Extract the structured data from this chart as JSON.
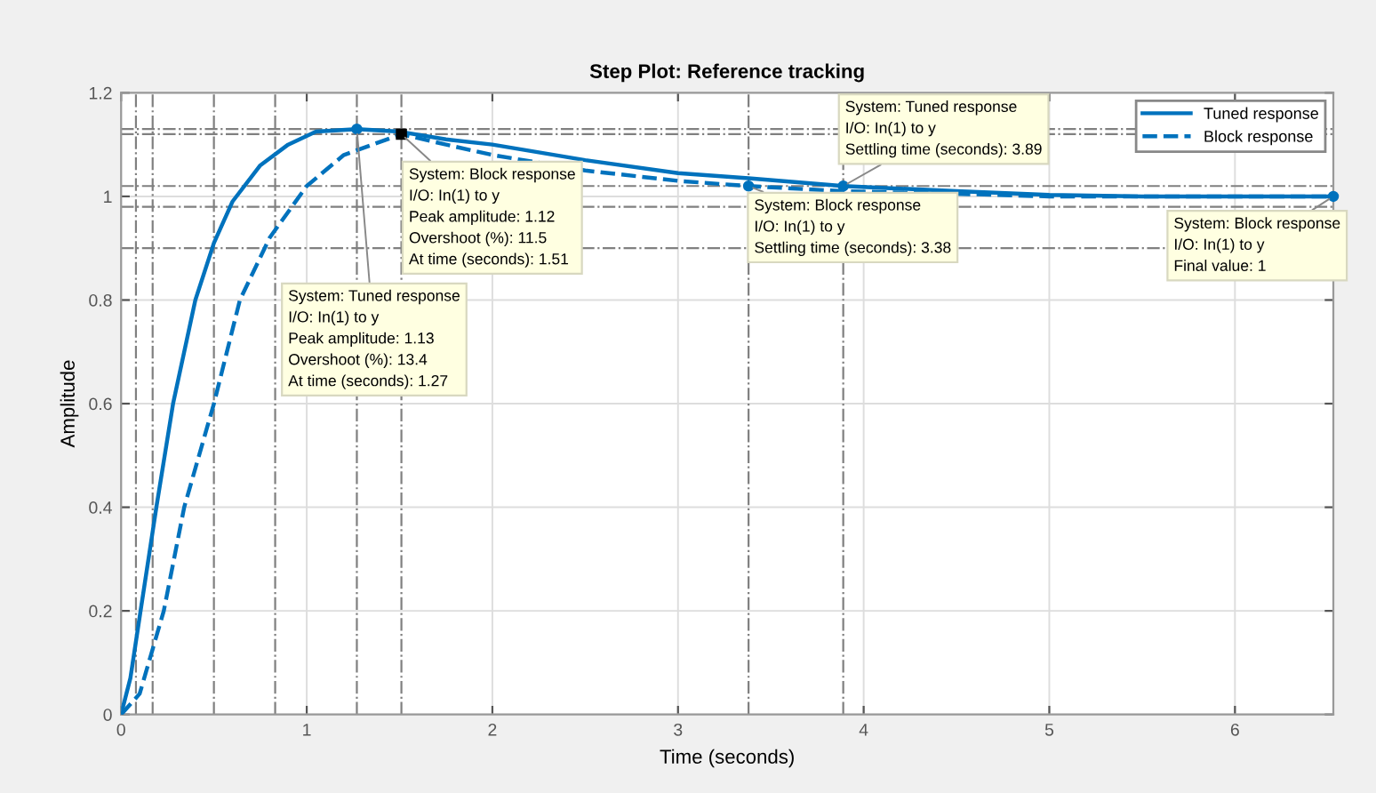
{
  "chart_data": {
    "type": "line",
    "title": "Step Plot: Reference tracking",
    "xlabel": "Time (seconds)",
    "ylabel": "Amplitude",
    "series": [
      {
        "name": "Tuned response",
        "color": "#0072bd",
        "line_style": "solid",
        "x": [
          0,
          0.05,
          0.105,
          0.19,
          0.28,
          0.4,
          0.5,
          0.6,
          0.75,
          0.9,
          1.05,
          1.27,
          1.5,
          1.75,
          2,
          2.5,
          3,
          3.38,
          3.89,
          4.5,
          5,
          5.5,
          6,
          6.53
        ],
        "values": [
          0,
          0.07,
          0.2,
          0.4,
          0.6,
          0.8,
          0.91,
          0.99,
          1.06,
          1.1,
          1.125,
          1.13,
          1.125,
          1.11,
          1.1,
          1.07,
          1.045,
          1.035,
          1.02,
          1.01,
          1.003,
          1.0,
          1.0,
          1.0
        ]
      },
      {
        "name": "Block response",
        "color": "#0072bd",
        "line_style": "dashed",
        "x": [
          0,
          0.1,
          0.23,
          0.34,
          0.5,
          0.64,
          0.8,
          1.0,
          1.2,
          1.51,
          1.75,
          2,
          2.5,
          3,
          3.38,
          3.89,
          4.5,
          5,
          5.5,
          6,
          6.53
        ],
        "values": [
          0,
          0.04,
          0.2,
          0.4,
          0.6,
          0.8,
          0.92,
          1.02,
          1.08,
          1.12,
          1.1,
          1.08,
          1.05,
          1.03,
          1.02,
          1.01,
          1.005,
          1.0,
          1.0,
          1.0,
          1.0
        ]
      }
    ],
    "xlim": [
      0,
      6.53
    ],
    "ylim": [
      0,
      1.2
    ],
    "xticks": [
      0,
      1,
      2,
      3,
      4,
      5,
      6
    ],
    "yticks": [
      0,
      0.2,
      0.4,
      0.6,
      0.8,
      1,
      1.2
    ],
    "grid": true,
    "legend": "top right",
    "marker": "none",
    "ref_lines": [
      {
        "axis": "y",
        "value": 1.13,
        "color": "#808080",
        "line_style": "dashdot"
      },
      {
        "axis": "y",
        "value": 1.12,
        "color": "#808080",
        "line_style": "dashdot"
      },
      {
        "axis": "y",
        "value": 1.02,
        "color": "#808080",
        "line_style": "dashdot"
      },
      {
        "axis": "y",
        "value": 0.98,
        "color": "#808080",
        "line_style": "dashdot"
      },
      {
        "axis": "y",
        "value": 0.9,
        "color": "#808080",
        "line_style": "dashdot"
      },
      {
        "axis": "x",
        "value": 0.08,
        "color": "#808080",
        "line_style": "dashdot"
      },
      {
        "axis": "x",
        "value": 0.17,
        "color": "#808080",
        "line_style": "dashdot"
      },
      {
        "axis": "x",
        "value": 0.5,
        "color": "#808080",
        "line_style": "dashdot"
      },
      {
        "axis": "x",
        "value": 0.83,
        "color": "#808080",
        "line_style": "dashdot"
      },
      {
        "axis": "x",
        "value": 1.27,
        "color": "#808080",
        "line_style": "dashdot"
      },
      {
        "axis": "x",
        "value": 1.51,
        "color": "#808080",
        "line_style": "dashdot"
      },
      {
        "axis": "x",
        "value": 3.38,
        "color": "#808080",
        "line_style": "dashdot"
      },
      {
        "axis": "x",
        "value": 3.89,
        "color": "#808080",
        "line_style": "dashdot"
      }
    ],
    "annotations": [
      {
        "text": "System: Tuned response\nI/O: In(1) to y\nPeak amplitude: 1.13\nOvershoot (%): 13.4\nAt time (seconds): 1.27",
        "x": 1.27,
        "y": 1.13
      },
      {
        "text": "System: Block response\nI/O: In(1) to y\nPeak amplitude: 1.12\nOvershoot (%): 11.5\nAt time (seconds): 1.51",
        "x": 1.51,
        "y": 1.12
      },
      {
        "text": "System: Tuned response\nI/O: In(1) to y\nSettling time (seconds): 3.89",
        "x": 3.89,
        "y": 1.02
      },
      {
        "text": "System: Block response\nI/O: In(1) to y\nSettling time (seconds): 3.38",
        "x": 3.38,
        "y": 1.02
      },
      {
        "text": "System: Block response\nI/O: In(1) to y\nFinal value: 1",
        "x": 6.53,
        "y": 1.0
      }
    ]
  }
}
